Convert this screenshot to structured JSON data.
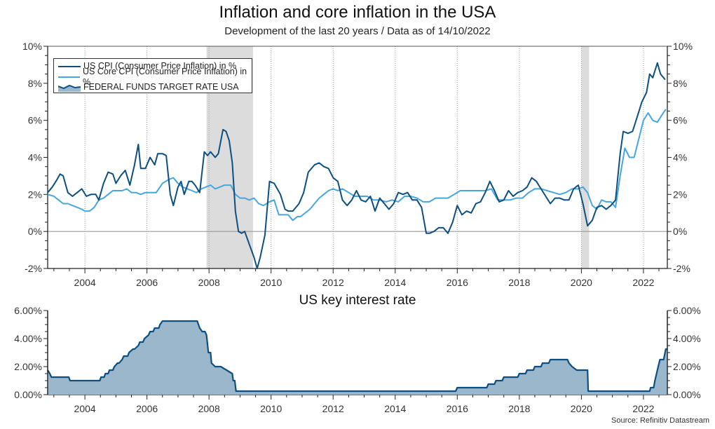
{
  "title": "Inflation and core inflation in the USA",
  "subtitle": "Development of the last 20 years / Data as of 14/10/2022",
  "source": "Source: Refinitiv Datastream",
  "colors": {
    "cpi": "#0d4f80",
    "core_cpi": "#46a7de",
    "fed_line": "#0d4f80",
    "fed_fill": "#9bb7cc",
    "recession": "#dcdcdc",
    "zero_line": "#999999"
  },
  "chart_data": [
    {
      "type": "line",
      "title": "Inflation and core inflation in the USA",
      "subtitle": "Development of the last 20 years / Data as of 14/10/2022",
      "xlabel": "",
      "ylabel": "",
      "xlim": [
        2002.8,
        2022.77
      ],
      "ylim": [
        -2,
        10
      ],
      "x_ticks": [
        2004,
        2006,
        2008,
        2010,
        2012,
        2014,
        2016,
        2018,
        2020,
        2022
      ],
      "x_tick_labels": [
        "2004",
        "2006",
        "2008",
        "2010",
        "2012",
        "2014",
        "2016",
        "2018",
        "2020",
        "2022"
      ],
      "y_ticks": [
        -2,
        0,
        2,
        4,
        6,
        8,
        10
      ],
      "y_tick_labels_left": [
        "-2%",
        "0%",
        "2%",
        "4%",
        "6%",
        "8%",
        "10%"
      ],
      "y_tick_labels_right": [
        "-2%",
        "0%",
        "2%",
        "4%",
        "6%",
        "8%",
        "10%"
      ],
      "grid": "vertical dotted at year ticks",
      "legend": {
        "position": "top-left",
        "entries": [
          "US CPI (Consumer Price Inflation) in %",
          "US Core CPI (Consumer Price Inflation) in %",
          "FEDERAL FUNDS TARGET RATE USA"
        ]
      },
      "recessions": [
        [
          2007.92,
          2009.42
        ],
        [
          2020.0,
          2020.25
        ]
      ],
      "series": [
        {
          "name": "US CPI (Consumer Price Inflation) in %",
          "x": [
            2002.8,
            2002.95,
            2003.1,
            2003.2,
            2003.3,
            2003.45,
            2003.6,
            2003.75,
            2003.9,
            2004.05,
            2004.2,
            2004.35,
            2004.45,
            2004.6,
            2004.75,
            2004.9,
            2005.0,
            2005.15,
            2005.3,
            2005.45,
            2005.6,
            2005.72,
            2005.8,
            2005.95,
            2006.1,
            2006.25,
            2006.35,
            2006.5,
            2006.62,
            2006.75,
            2006.85,
            2007.0,
            2007.1,
            2007.2,
            2007.35,
            2007.45,
            2007.55,
            2007.7,
            2007.85,
            2007.95,
            2008.05,
            2008.2,
            2008.3,
            2008.45,
            2008.55,
            2008.65,
            2008.75,
            2008.85,
            2008.95,
            2009.05,
            2009.15,
            2009.3,
            2009.45,
            2009.55,
            2009.65,
            2009.8,
            2009.95,
            2010.1,
            2010.2,
            2010.3,
            2010.45,
            2010.55,
            2010.7,
            2010.9,
            2011.05,
            2011.2,
            2011.4,
            2011.55,
            2011.7,
            2011.85,
            2012.0,
            2012.15,
            2012.3,
            2012.45,
            2012.6,
            2012.75,
            2012.9,
            2013.05,
            2013.2,
            2013.35,
            2013.5,
            2013.65,
            2013.8,
            2013.95,
            2014.1,
            2014.25,
            2014.4,
            2014.55,
            2014.7,
            2014.85,
            2015.0,
            2015.1,
            2015.25,
            2015.4,
            2015.55,
            2015.7,
            2015.85,
            2016.0,
            2016.15,
            2016.3,
            2016.45,
            2016.6,
            2016.75,
            2016.9,
            2017.05,
            2017.2,
            2017.35,
            2017.5,
            2017.65,
            2017.8,
            2017.95,
            2018.1,
            2018.25,
            2018.4,
            2018.55,
            2018.7,
            2018.85,
            2019.0,
            2019.15,
            2019.3,
            2019.45,
            2019.6,
            2019.75,
            2019.9,
            2020.05,
            2020.2,
            2020.35,
            2020.5,
            2020.65,
            2020.8,
            2020.95,
            2021.1,
            2021.25,
            2021.35,
            2021.5,
            2021.65,
            2021.8,
            2021.95,
            2022.1,
            2022.2,
            2022.3,
            2022.45,
            2022.55,
            2022.7
          ],
          "values": [
            2.1,
            2.4,
            2.8,
            3.1,
            3.0,
            2.1,
            1.9,
            2.1,
            2.3,
            1.9,
            2.0,
            2.0,
            1.7,
            2.6,
            3.2,
            3.1,
            2.6,
            3.0,
            3.3,
            2.5,
            3.6,
            4.7,
            3.4,
            3.4,
            4.0,
            3.6,
            4.2,
            4.2,
            4.1,
            2.0,
            1.4,
            2.4,
            2.7,
            2.0,
            2.7,
            2.7,
            2.5,
            2.1,
            4.3,
            4.1,
            4.3,
            4.0,
            4.2,
            5.5,
            5.4,
            4.9,
            3.7,
            1.1,
            0.0,
            -0.1,
            0.0,
            -0.7,
            -1.4,
            -2.0,
            -1.4,
            -0.2,
            2.7,
            2.6,
            2.3,
            2.0,
            1.2,
            1.1,
            1.1,
            1.5,
            2.1,
            3.2,
            3.6,
            3.7,
            3.5,
            3.4,
            2.9,
            2.7,
            1.7,
            1.4,
            1.7,
            2.2,
            1.7,
            1.6,
            1.9,
            1.1,
            1.8,
            1.5,
            1.2,
            1.5,
            2.1,
            2.0,
            2.1,
            1.7,
            1.7,
            1.3,
            -0.1,
            -0.1,
            0.0,
            0.2,
            0.2,
            -0.1,
            0.5,
            1.4,
            0.9,
            1.1,
            1.0,
            1.5,
            1.6,
            2.1,
            2.7,
            2.2,
            1.6,
            1.7,
            2.2,
            1.9,
            2.1,
            2.2,
            2.4,
            2.9,
            2.7,
            2.3,
            1.9,
            1.5,
            1.8,
            1.8,
            1.7,
            1.7,
            2.3,
            2.5,
            1.5,
            0.3,
            0.6,
            1.3,
            1.4,
            1.2,
            1.4,
            1.7,
            4.2,
            5.4,
            5.3,
            5.4,
            6.2,
            7.0,
            7.5,
            8.5,
            8.3,
            9.1,
            8.5,
            8.2
          ]
        },
        {
          "name": "US Core CPI (Consumer Price Inflation) in %",
          "x": [
            2002.8,
            2003.0,
            2003.15,
            2003.3,
            2003.45,
            2003.6,
            2003.75,
            2003.9,
            2004.0,
            2004.15,
            2004.3,
            2004.45,
            2004.6,
            2004.75,
            2004.9,
            2005.05,
            2005.2,
            2005.35,
            2005.5,
            2005.65,
            2005.8,
            2005.95,
            2006.1,
            2006.3,
            2006.5,
            2006.7,
            2006.85,
            2007.0,
            2007.15,
            2007.3,
            2007.45,
            2007.6,
            2007.75,
            2007.9,
            2008.05,
            2008.2,
            2008.35,
            2008.5,
            2008.7,
            2008.85,
            2009.0,
            2009.15,
            2009.3,
            2009.45,
            2009.6,
            2009.75,
            2009.95,
            2010.1,
            2010.25,
            2010.4,
            2010.55,
            2010.7,
            2010.85,
            2010.95,
            2011.1,
            2011.25,
            2011.4,
            2011.55,
            2011.7,
            2011.85,
            2012.0,
            2012.15,
            2012.3,
            2012.5,
            2012.7,
            2012.9,
            2013.1,
            2013.3,
            2013.5,
            2013.7,
            2013.9,
            2014.1,
            2014.3,
            2014.5,
            2014.7,
            2014.9,
            2015.1,
            2015.3,
            2015.5,
            2015.7,
            2015.9,
            2016.1,
            2016.3,
            2016.5,
            2016.7,
            2016.9,
            2017.1,
            2017.3,
            2017.5,
            2017.7,
            2017.9,
            2018.1,
            2018.3,
            2018.5,
            2018.7,
            2018.9,
            2019.1,
            2019.3,
            2019.5,
            2019.7,
            2019.9,
            2020.05,
            2020.2,
            2020.35,
            2020.5,
            2020.65,
            2020.8,
            2020.95,
            2021.1,
            2021.25,
            2021.4,
            2021.55,
            2021.7,
            2021.85,
            2022.0,
            2022.15,
            2022.3,
            2022.45,
            2022.6,
            2022.72
          ],
          "values": [
            2.0,
            1.9,
            1.7,
            1.5,
            1.5,
            1.4,
            1.3,
            1.2,
            1.1,
            1.1,
            1.3,
            1.7,
            1.8,
            2.0,
            2.2,
            2.2,
            2.2,
            2.3,
            2.1,
            2.1,
            2.0,
            2.1,
            2.1,
            2.1,
            2.6,
            2.8,
            2.9,
            2.6,
            2.4,
            2.3,
            2.2,
            2.1,
            2.3,
            2.4,
            2.5,
            2.3,
            2.4,
            2.5,
            2.5,
            2.0,
            1.8,
            1.8,
            1.7,
            1.8,
            1.5,
            1.4,
            1.6,
            1.7,
            0.9,
            0.9,
            0.9,
            0.6,
            0.8,
            0.8,
            1.0,
            1.2,
            1.5,
            1.8,
            2.0,
            2.2,
            2.3,
            2.2,
            2.3,
            2.1,
            1.9,
            1.9,
            1.9,
            1.7,
            1.7,
            1.6,
            1.7,
            1.6,
            1.9,
            1.9,
            1.8,
            1.6,
            1.6,
            1.8,
            1.8,
            1.8,
            2.0,
            2.2,
            2.2,
            2.2,
            2.2,
            2.2,
            2.3,
            1.7,
            1.7,
            1.7,
            1.8,
            1.8,
            2.1,
            2.3,
            2.3,
            2.2,
            2.1,
            2.0,
            2.1,
            2.3,
            2.3,
            2.4,
            2.1,
            1.4,
            1.2,
            1.7,
            1.6,
            1.6,
            1.3,
            3.0,
            4.5,
            4.0,
            4.0,
            5.0,
            6.0,
            6.4,
            6.0,
            5.9,
            6.3,
            6.6
          ]
        }
      ]
    },
    {
      "type": "area",
      "title": "US key interest rate",
      "xlabel": "",
      "ylabel": "",
      "xlim": [
        2002.8,
        2022.77
      ],
      "ylim": [
        0,
        6
      ],
      "x_ticks": [
        2004,
        2006,
        2008,
        2010,
        2012,
        2014,
        2016,
        2018,
        2020,
        2022
      ],
      "x_tick_labels": [
        "2004",
        "2006",
        "2008",
        "2010",
        "2012",
        "2014",
        "2016",
        "2018",
        "2020",
        "2022"
      ],
      "y_ticks": [
        0,
        2,
        4,
        6
      ],
      "y_tick_labels_left": [
        "0.00%",
        "2.00%",
        "4.00%",
        "6.00%"
      ],
      "y_tick_labels_right": [
        "0.00%",
        "2.00%",
        "4.00%",
        "6.00%"
      ],
      "series": [
        {
          "name": "FEDERAL FUNDS TARGET RATE USA",
          "x": [
            2002.8,
            2002.87,
            2002.92,
            2003.48,
            2003.52,
            2004.48,
            2004.52,
            2004.62,
            2004.66,
            2004.75,
            2004.79,
            2004.9,
            2004.95,
            2005.05,
            2005.1,
            2005.2,
            2005.25,
            2005.38,
            2005.42,
            2005.55,
            2005.6,
            2005.72,
            2005.77,
            2005.87,
            2005.92,
            2006.05,
            2006.1,
            2006.2,
            2006.25,
            2006.38,
            2006.42,
            2006.5,
            2006.55,
            2007.62,
            2007.7,
            2007.78,
            2007.87,
            2007.92,
            2007.98,
            2008.05,
            2008.08,
            2008.2,
            2008.25,
            2008.33,
            2008.38,
            2008.75,
            2008.78,
            2008.83,
            2008.87,
            2008.97,
            2015.95,
            2016.0,
            2016.95,
            2017.0,
            2017.2,
            2017.25,
            2017.45,
            2017.5,
            2017.95,
            2018.0,
            2018.2,
            2018.25,
            2018.45,
            2018.5,
            2018.7,
            2018.75,
            2018.95,
            2019.0,
            2019.55,
            2019.6,
            2019.7,
            2019.85,
            2019.95,
            2020.2,
            2020.22,
            2022.2,
            2022.23,
            2022.33,
            2022.37,
            2022.45,
            2022.53,
            2022.6,
            2022.65,
            2022.72,
            2022.77
          ],
          "values": [
            1.75,
            1.5,
            1.25,
            1.25,
            1.0,
            1.0,
            1.25,
            1.25,
            1.5,
            1.5,
            1.75,
            1.75,
            2.0,
            2.25,
            2.25,
            2.5,
            2.75,
            2.75,
            3.0,
            3.25,
            3.25,
            3.5,
            3.75,
            3.75,
            4.0,
            4.25,
            4.5,
            4.5,
            4.75,
            4.75,
            5.0,
            5.25,
            5.25,
            5.25,
            4.75,
            4.5,
            4.5,
            4.25,
            3.0,
            3.0,
            2.25,
            2.0,
            2.0,
            2.0,
            2.0,
            1.5,
            1.0,
            1.0,
            0.25,
            0.25,
            0.25,
            0.5,
            0.5,
            0.75,
            0.75,
            1.0,
            1.0,
            1.25,
            1.25,
            1.5,
            1.5,
            1.75,
            1.75,
            2.0,
            2.0,
            2.25,
            2.25,
            2.5,
            2.5,
            2.25,
            2.0,
            1.75,
            1.75,
            1.75,
            0.25,
            0.25,
            0.5,
            0.5,
            1.0,
            1.75,
            2.5,
            2.5,
            2.5,
            3.25,
            3.25
          ]
        }
      ]
    }
  ]
}
